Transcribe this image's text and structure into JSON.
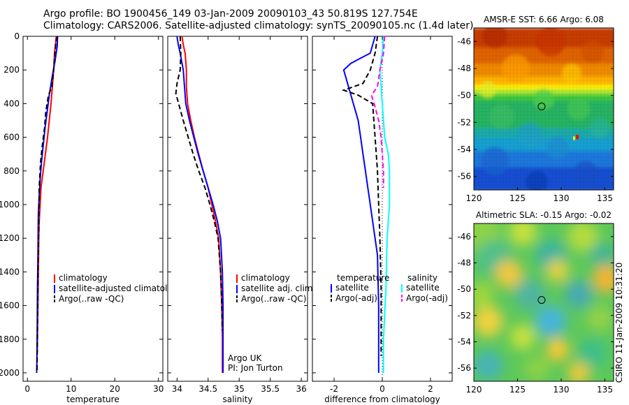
{
  "header": {
    "line1": "Argo profile: BO 1900456_149 03-Jan-2009 20090103_43 50.819S 127.754E",
    "line2": "Climatology: CARS2006. Satellite-adjusted climatology: synTS_20090105.nc (1.4d later)"
  },
  "chart_data": [
    {
      "type": "line",
      "xlabel": "temperature",
      "xlim": [
        -1,
        31
      ],
      "ylim": [
        2050,
        0
      ],
      "yticks": [
        0,
        200,
        400,
        600,
        800,
        1000,
        1200,
        1400,
        1600,
        1800,
        2000
      ],
      "xticks": [
        0,
        10,
        20,
        30
      ],
      "legend": [
        "climatology",
        "satellite-adjusted climatology",
        "Argo(..raw -QC)"
      ],
      "series": [
        {
          "name": "climatology",
          "color": "#ff0000",
          "dash": "none",
          "x": [
            6.6,
            6.4,
            6.2,
            6.0,
            5.7,
            5.4,
            5.0,
            4.6,
            4.1,
            3.6,
            3.1,
            2.9,
            2.7,
            2.6,
            2.5,
            2.4,
            2.35,
            2.3,
            2.25
          ],
          "y": [
            0,
            50,
            100,
            200,
            300,
            400,
            500,
            600,
            700,
            800,
            900,
            1000,
            1100,
            1200,
            1400,
            1600,
            1700,
            1800,
            1880
          ]
        },
        {
          "name": "satellite-adjusted climatology",
          "color": "#0000ff",
          "dash": "none",
          "x": [
            6.9,
            6.8,
            6.3,
            5.6,
            5.0,
            4.5,
            4.0,
            3.6,
            3.2,
            2.9,
            2.7,
            2.5,
            2.45,
            2.4,
            2.3,
            2.25,
            2.2,
            2.15,
            2.1
          ],
          "y": [
            0,
            60,
            150,
            250,
            350,
            450,
            550,
            650,
            750,
            850,
            950,
            1050,
            1150,
            1300,
            1500,
            1700,
            1850,
            1950,
            2000
          ]
        },
        {
          "name": "Argo(..raw -QC)",
          "color": "#000000",
          "dash": "7,4",
          "x": [
            6.8,
            6.5,
            6.3,
            6.0,
            5.6,
            4.8,
            4.2,
            3.9,
            3.4,
            3.0,
            2.7,
            2.6,
            2.4,
            2.3,
            2.2
          ],
          "y": [
            0,
            40,
            100,
            200,
            300,
            350,
            450,
            550,
            650,
            750,
            900,
            1100,
            1400,
            1700,
            2000
          ]
        }
      ]
    },
    {
      "type": "line",
      "xlabel": "salinity",
      "xlim": [
        33.85,
        36.1
      ],
      "ylim": [
        2050,
        0
      ],
      "xticks": [
        34,
        34.5,
        35,
        35.5,
        36
      ],
      "legend": [
        "climatology",
        "satellite adj. clim.",
        "Argo(..raw -QC)"
      ],
      "annotations": [
        "Argo UK",
        "PI: Jon Turton"
      ],
      "series": [
        {
          "name": "climatology",
          "color": "#ff0000",
          "dash": "none",
          "x": [
            34.08,
            34.1,
            34.13,
            34.15,
            34.15,
            34.17,
            34.22,
            34.28,
            34.35,
            34.42,
            34.5,
            34.56,
            34.62,
            34.67,
            34.7,
            34.72,
            34.73,
            34.73
          ],
          "y": [
            0,
            50,
            100,
            200,
            300,
            400,
            500,
            600,
            700,
            800,
            900,
            1000,
            1100,
            1200,
            1400,
            1600,
            1800,
            2000
          ]
        },
        {
          "name": "satellite adj. clim.",
          "color": "#0000ff",
          "dash": "none",
          "x": [
            34.0,
            34.02,
            34.05,
            34.1,
            34.12,
            34.14,
            34.2,
            34.27,
            34.34,
            34.42,
            34.5,
            34.58,
            34.65,
            34.7,
            34.73,
            34.74,
            34.74
          ],
          "y": [
            0,
            50,
            100,
            200,
            300,
            400,
            500,
            600,
            700,
            800,
            900,
            1000,
            1100,
            1200,
            1400,
            1600,
            2000
          ]
        },
        {
          "name": "Argo(..raw -QC)",
          "color": "#000000",
          "dash": "7,4",
          "x": [
            34.05,
            34.06,
            34.05,
            34.0,
            33.98,
            34.04,
            34.1,
            34.18,
            34.26,
            34.35,
            34.45,
            34.53,
            34.6,
            34.66,
            34.7,
            34.72,
            34.73
          ],
          "y": [
            0,
            100,
            200,
            280,
            340,
            420,
            500,
            600,
            700,
            800,
            900,
            1000,
            1100,
            1200,
            1400,
            1600,
            1750
          ]
        }
      ]
    },
    {
      "type": "line",
      "xlabel": "difference from climatology",
      "xlim": [
        -2.9,
        2.9
      ],
      "ylim": [
        2050,
        0
      ],
      "xticks": [
        -2,
        0,
        2
      ],
      "legend_headers": [
        "temperature",
        "salinity"
      ],
      "legend": [
        "satellite",
        "Argo(-adj)",
        "satellite",
        "Argo(-adj)"
      ],
      "series": [
        {
          "name": "temperature satellite",
          "color": "#0000ff",
          "dash": "none",
          "x": [
            -0.3,
            -0.5,
            -1.3,
            -1.6,
            -1.4,
            -1.2,
            -1.0,
            -0.9,
            -0.8,
            -0.7,
            -0.6,
            -0.5,
            -0.2,
            -0.15,
            -0.15
          ],
          "y": [
            0,
            100,
            160,
            200,
            300,
            400,
            500,
            600,
            700,
            800,
            900,
            1000,
            1300,
            1600,
            2000
          ]
        },
        {
          "name": "temperature Argo(-adj)",
          "color": "#000000",
          "dash": "7,4",
          "x": [
            -0.2,
            -0.3,
            -0.5,
            -0.8,
            -1.6,
            -1.0,
            -0.4,
            -0.35,
            -0.3,
            -0.2,
            -0.15,
            -0.1,
            -0.05,
            -0.05
          ],
          "y": [
            0,
            100,
            200,
            280,
            320,
            350,
            400,
            500,
            600,
            800,
            1000,
            1200,
            1500,
            1900
          ]
        },
        {
          "name": "salinity satellite",
          "color": "#00ffff",
          "dash": "none",
          "x": [
            0.05,
            0.0,
            -0.1,
            -0.05,
            0.0,
            0.05,
            0.1,
            0.25,
            0.3,
            0.3,
            0.2,
            0.15,
            0.05,
            0.05
          ],
          "y": [
            0,
            100,
            200,
            300,
            400,
            500,
            600,
            700,
            800,
            1000,
            1200,
            1500,
            1800,
            2000
          ]
        },
        {
          "name": "salinity Argo(-adj)",
          "color": "#ff00ff",
          "dash": "7,4",
          "x": [
            0.1,
            0.05,
            -0.1,
            -0.2,
            -0.45,
            -0.3,
            -0.15,
            -0.05,
            0.0,
            0.05,
            0.05
          ],
          "y": [
            0,
            100,
            200,
            300,
            350,
            420,
            500,
            600,
            700,
            800,
            900
          ]
        }
      ]
    },
    {
      "type": "heatmap",
      "title": "AMSR-E SST: 6.66 Argo: 6.08",
      "xlim": [
        120,
        136
      ],
      "ylim": [
        -57,
        -45
      ],
      "xticks": [
        120,
        125,
        130,
        135
      ],
      "yticks": [
        -46,
        -48,
        -50,
        -52,
        -54,
        -56
      ],
      "argo_position": [
        127.754,
        -50.819
      ]
    },
    {
      "type": "heatmap",
      "title": "Altimetric SLA: -0.15 Argo: -0.02",
      "xlim": [
        120,
        136
      ],
      "ylim": [
        -57,
        -45
      ],
      "xticks": [
        120,
        125,
        130,
        135
      ],
      "yticks": [
        -46,
        -48,
        -50,
        -52,
        -54,
        -56
      ],
      "argo_position": [
        127.754,
        -50.819
      ]
    }
  ],
  "side_label": "CSIRO 11-Jan-2009 10:31:20"
}
